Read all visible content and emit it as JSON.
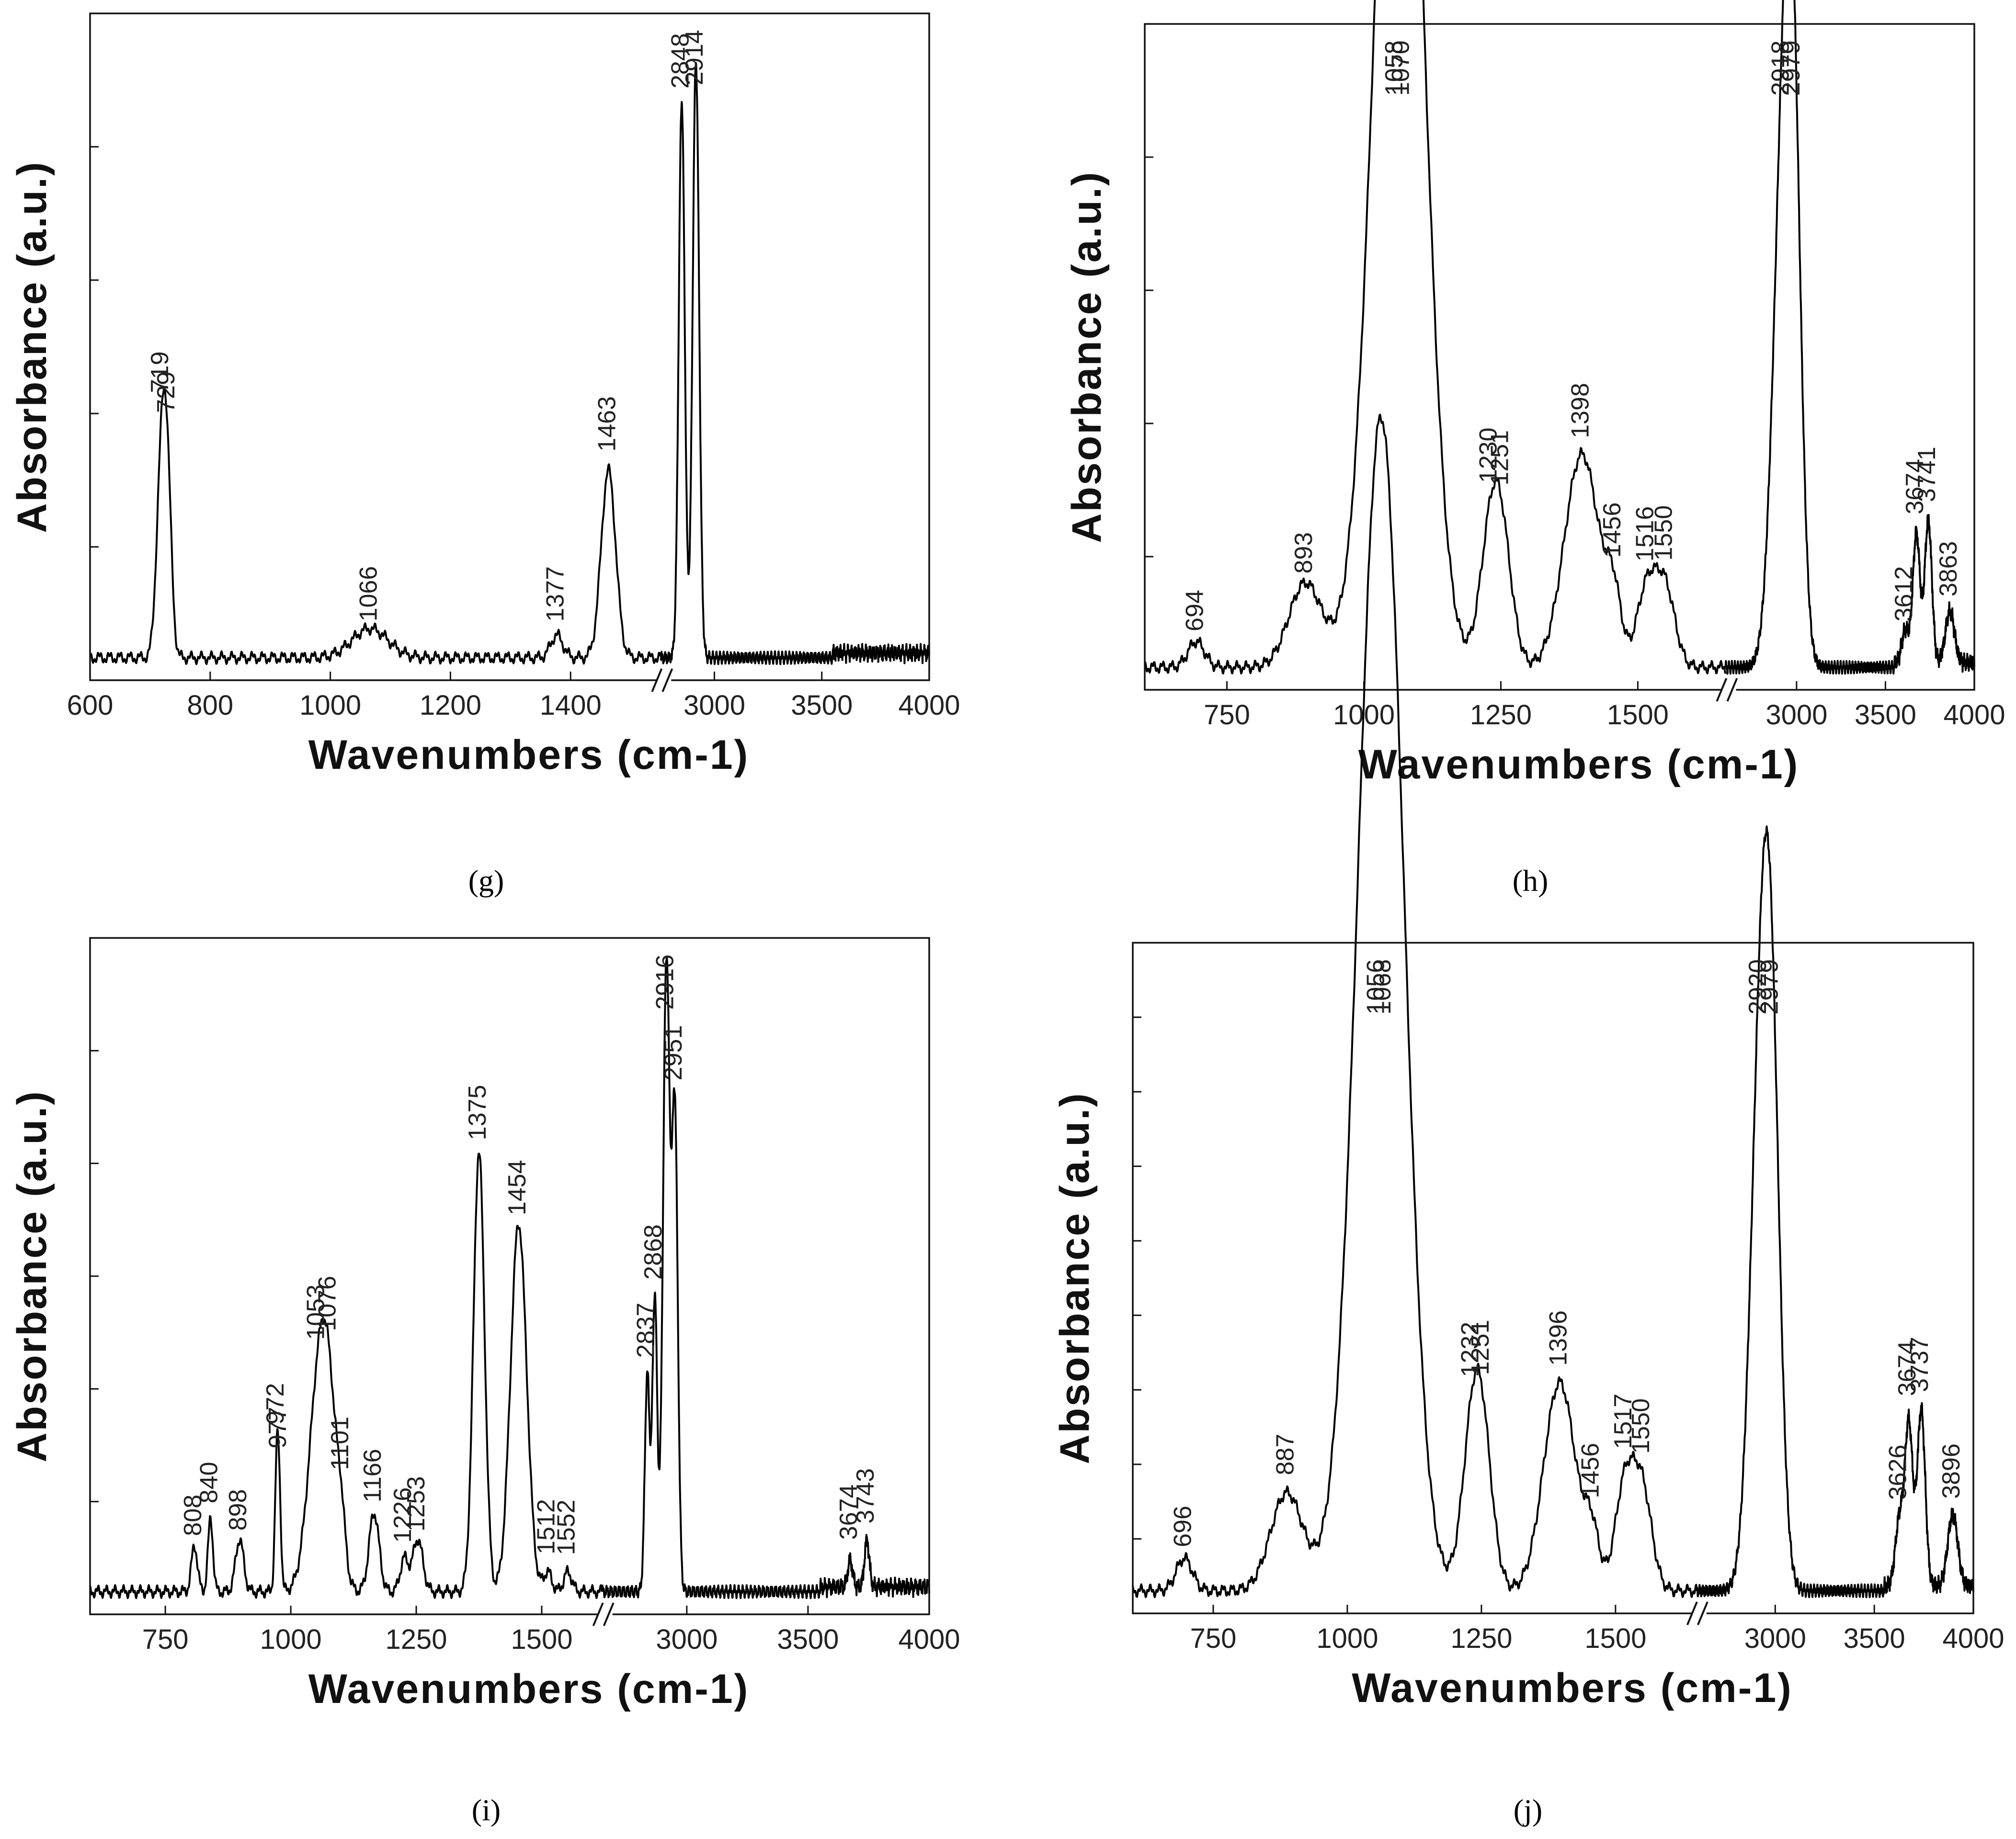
{
  "chart_data": [
    {
      "type": "line",
      "panel": "(g)",
      "title": "",
      "xlabel": "Wavenumbers (cm-1)",
      "ylabel": "Absorbance (a.u.)",
      "x_break": {
        "low_end": 1550,
        "high_start": 2750
      },
      "xlim": [
        600,
        4000
      ],
      "ylim": [
        0,
        1
      ],
      "x_ticks": [
        "600",
        "800",
        "1000",
        "1200",
        "1400",
        "3000",
        "3500",
        "4000"
      ],
      "x_tick_values": [
        600,
        800,
        1000,
        1200,
        1400,
        3000,
        3500,
        4000
      ],
      "y_ticks_count": 4,
      "baseline": 0.02,
      "peaks": [
        {
          "x": 719,
          "y": 0.3,
          "w": 8,
          "label": "719"
        },
        {
          "x": 729,
          "y": 0.22,
          "w": 7,
          "label": "729"
        },
        {
          "x": 1066,
          "y": 0.045,
          "w": 30,
          "label": "1066"
        },
        {
          "x": 1377,
          "y": 0.035,
          "w": 10,
          "label": "1377"
        },
        {
          "x": 1463,
          "y": 0.29,
          "w": 12,
          "label": "1463"
        },
        {
          "x": 2848,
          "y": 0.86,
          "w": 14,
          "label": "2848"
        },
        {
          "x": 2914,
          "y": 0.92,
          "w": 15,
          "label": "2914"
        }
      ]
    },
    {
      "type": "line",
      "panel": "(h)",
      "title": "",
      "xlabel": "Wavenumbers (cm-1)",
      "ylabel": "Absorbance (a.u.)",
      "x_break": {
        "low_end": 1660,
        "high_start": 2600
      },
      "xlim": [
        600,
        4000
      ],
      "ylim": [
        0,
        1
      ],
      "x_ticks": [
        "750",
        "1000",
        "1250",
        "1500",
        "3000",
        "3500",
        "4000"
      ],
      "x_tick_values": [
        750,
        1000,
        1250,
        1500,
        3000,
        3500,
        4000
      ],
      "y_ticks_count": 4,
      "baseline": 0.02,
      "peaks": [
        {
          "x": 694,
          "y": 0.04,
          "w": 15,
          "label": "694"
        },
        {
          "x": 893,
          "y": 0.13,
          "w": 30,
          "label": "893"
        },
        {
          "x": 1058,
          "y": 0.9,
          "w": 45,
          "label": "1058"
        },
        {
          "x": 1070,
          "y": 0.88,
          "w": 40,
          "label": "1070"
        },
        {
          "x": 1230,
          "y": 0.16,
          "w": 20,
          "label": "1230"
        },
        {
          "x": 1251,
          "y": 0.17,
          "w": 20,
          "label": "1251"
        },
        {
          "x": 1398,
          "y": 0.33,
          "w": 32,
          "label": "1398"
        },
        {
          "x": 1456,
          "y": 0.09,
          "w": 14,
          "label": "1456"
        },
        {
          "x": 1516,
          "y": 0.12,
          "w": 18,
          "label": "1516"
        },
        {
          "x": 1550,
          "y": 0.12,
          "w": 18,
          "label": "1550"
        },
        {
          "x": 2918,
          "y": 0.68,
          "w": 55,
          "label": "2918"
        },
        {
          "x": 2979,
          "y": 0.75,
          "w": 45,
          "label": "2979"
        },
        {
          "x": 3612,
          "y": 0.05,
          "w": 20,
          "label": "3612"
        },
        {
          "x": 3674,
          "y": 0.2,
          "w": 20,
          "label": "3674"
        },
        {
          "x": 3741,
          "y": 0.22,
          "w": 20,
          "label": "3741"
        },
        {
          "x": 3863,
          "y": 0.08,
          "w": 25,
          "label": "3863"
        }
      ]
    },
    {
      "type": "line",
      "panel": "(i)",
      "title": "",
      "xlabel": "Wavenumbers (cm-1)",
      "ylabel": "Absorbance  (a.u.)",
      "x_break": {
        "low_end": 1620,
        "high_start": 2650
      },
      "xlim": [
        600,
        4000
      ],
      "ylim": [
        0,
        1
      ],
      "x_ticks": [
        "750",
        "1000",
        "1250",
        "1500",
        "3000",
        "3500",
        "4000"
      ],
      "x_tick_values": [
        750,
        1000,
        1250,
        1500,
        3000,
        3500,
        4000
      ],
      "y_ticks_count": 5,
      "baseline": 0.02,
      "peaks": [
        {
          "x": 808,
          "y": 0.07,
          "w": 6,
          "label": "808"
        },
        {
          "x": 840,
          "y": 0.11,
          "w": 5,
          "label": "840"
        },
        {
          "x": 898,
          "y": 0.08,
          "w": 8,
          "label": "898"
        },
        {
          "x": 972,
          "y": 0.17,
          "w": 4,
          "label": "972"
        },
        {
          "x": 977,
          "y": 0.12,
          "w": 4,
          "label": "977"
        },
        {
          "x": 1053,
          "y": 0.26,
          "w": 20,
          "label": "1053"
        },
        {
          "x": 1076,
          "y": 0.24,
          "w": 18,
          "label": "1076"
        },
        {
          "x": 1101,
          "y": 0.06,
          "w": 8,
          "label": "1101"
        },
        {
          "x": 1166,
          "y": 0.12,
          "w": 10,
          "label": "1166"
        },
        {
          "x": 1226,
          "y": 0.05,
          "w": 8,
          "label": "1226"
        },
        {
          "x": 1253,
          "y": 0.08,
          "w": 10,
          "label": "1253"
        },
        {
          "x": 1375,
          "y": 0.67,
          "w": 11,
          "label": "1375"
        },
        {
          "x": 1454,
          "y": 0.56,
          "w": 16,
          "label": "1454"
        },
        {
          "x": 1512,
          "y": 0.03,
          "w": 8,
          "label": "1512"
        },
        {
          "x": 1552,
          "y": 0.03,
          "w": 8,
          "label": "1552"
        },
        {
          "x": 2837,
          "y": 0.33,
          "w": 10,
          "label": "2837"
        },
        {
          "x": 2868,
          "y": 0.45,
          "w": 10,
          "label": "2868"
        },
        {
          "x": 2916,
          "y": 0.96,
          "w": 14,
          "label": "2916"
        },
        {
          "x": 2951,
          "y": 0.72,
          "w": 12,
          "label": "2951"
        },
        {
          "x": 3674,
          "y": 0.04,
          "w": 10,
          "label": "3674"
        },
        {
          "x": 3743,
          "y": 0.07,
          "w": 10,
          "label": "3743"
        }
      ]
    },
    {
      "type": "line",
      "panel": "(j)",
      "title": "",
      "xlabel": "Wavenumbers (cm-1)",
      "ylabel": "Absorbance (a.u.)",
      "x_break": {
        "low_end": 1650,
        "high_start": 2600
      },
      "xlim": [
        600,
        4000
      ],
      "ylim": [
        0,
        1
      ],
      "x_ticks": [
        "750",
        "1000",
        "1250",
        "1500",
        "3000",
        "3500",
        "4000"
      ],
      "x_tick_values": [
        750,
        1000,
        1250,
        1500,
        3000,
        3500,
        4000
      ],
      "y_ticks_count": 8,
      "baseline": 0.02,
      "peaks": [
        {
          "x": 696,
          "y": 0.05,
          "w": 15,
          "label": "696"
        },
        {
          "x": 887,
          "y": 0.15,
          "w": 30,
          "label": "887"
        },
        {
          "x": 1056,
          "y": 0.92,
          "w": 45,
          "label": "1056"
        },
        {
          "x": 1068,
          "y": 0.9,
          "w": 40,
          "label": "1068"
        },
        {
          "x": 1232,
          "y": 0.18,
          "w": 20,
          "label": "1232"
        },
        {
          "x": 1251,
          "y": 0.2,
          "w": 20,
          "label": "1251"
        },
        {
          "x": 1396,
          "y": 0.32,
          "w": 30,
          "label": "1396"
        },
        {
          "x": 1456,
          "y": 0.08,
          "w": 14,
          "label": "1456"
        },
        {
          "x": 1517,
          "y": 0.16,
          "w": 18,
          "label": "1517"
        },
        {
          "x": 1550,
          "y": 0.15,
          "w": 18,
          "label": "1550"
        },
        {
          "x": 2920,
          "y": 0.68,
          "w": 50,
          "label": "2920"
        },
        {
          "x": 2979,
          "y": 0.73,
          "w": 45,
          "label": "2979"
        },
        {
          "x": 3626,
          "y": 0.1,
          "w": 20,
          "label": "3626"
        },
        {
          "x": 3674,
          "y": 0.25,
          "w": 20,
          "label": "3674"
        },
        {
          "x": 3737,
          "y": 0.27,
          "w": 20,
          "label": "3737"
        },
        {
          "x": 3896,
          "y": 0.11,
          "w": 25,
          "label": "3896"
        }
      ]
    }
  ]
}
